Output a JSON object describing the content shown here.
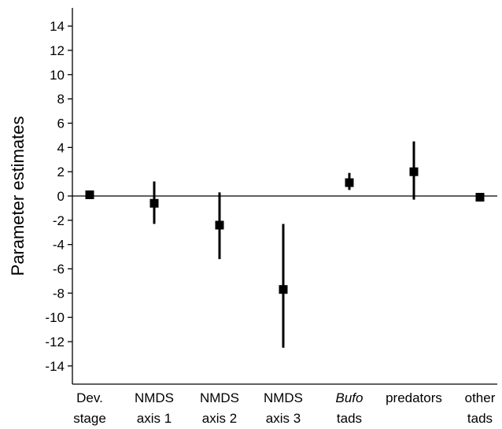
{
  "chart_data": {
    "type": "scatter",
    "title": "",
    "xlabel": "",
    "ylabel": "Parameter estimates",
    "ylim": [
      -15.5,
      15.5
    ],
    "yticks": [
      14,
      12,
      10,
      8,
      6,
      4,
      2,
      0,
      -2,
      -4,
      -6,
      -8,
      -10,
      -12,
      -14
    ],
    "zero_line": true,
    "grid": false,
    "legend": "none",
    "marker": "square",
    "color": "#000000",
    "categories": [
      {
        "line1": "Dev.",
        "line2": "stage",
        "line1_italic": false
      },
      {
        "line1": "NMDS",
        "line2": "axis 1",
        "line1_italic": false
      },
      {
        "line1": "NMDS",
        "line2": "axis 2",
        "line1_italic": false
      },
      {
        "line1": "NMDS",
        "line2": "axis 3",
        "line1_italic": false
      },
      {
        "line1": "Bufo",
        "line2": "tads",
        "line1_italic": true
      },
      {
        "line1": "predators",
        "line2": "",
        "line1_italic": false
      },
      {
        "line1": "other",
        "line2": "tads",
        "line1_italic": false
      }
    ],
    "estimates": [
      0.1,
      -0.6,
      -2.4,
      -7.7,
      1.1,
      2.0,
      -0.1
    ],
    "lower": [
      null,
      -2.3,
      -5.2,
      -12.5,
      0.5,
      -0.3,
      null
    ],
    "upper": [
      null,
      1.2,
      0.3,
      -2.3,
      1.9,
      4.5,
      null
    ]
  }
}
